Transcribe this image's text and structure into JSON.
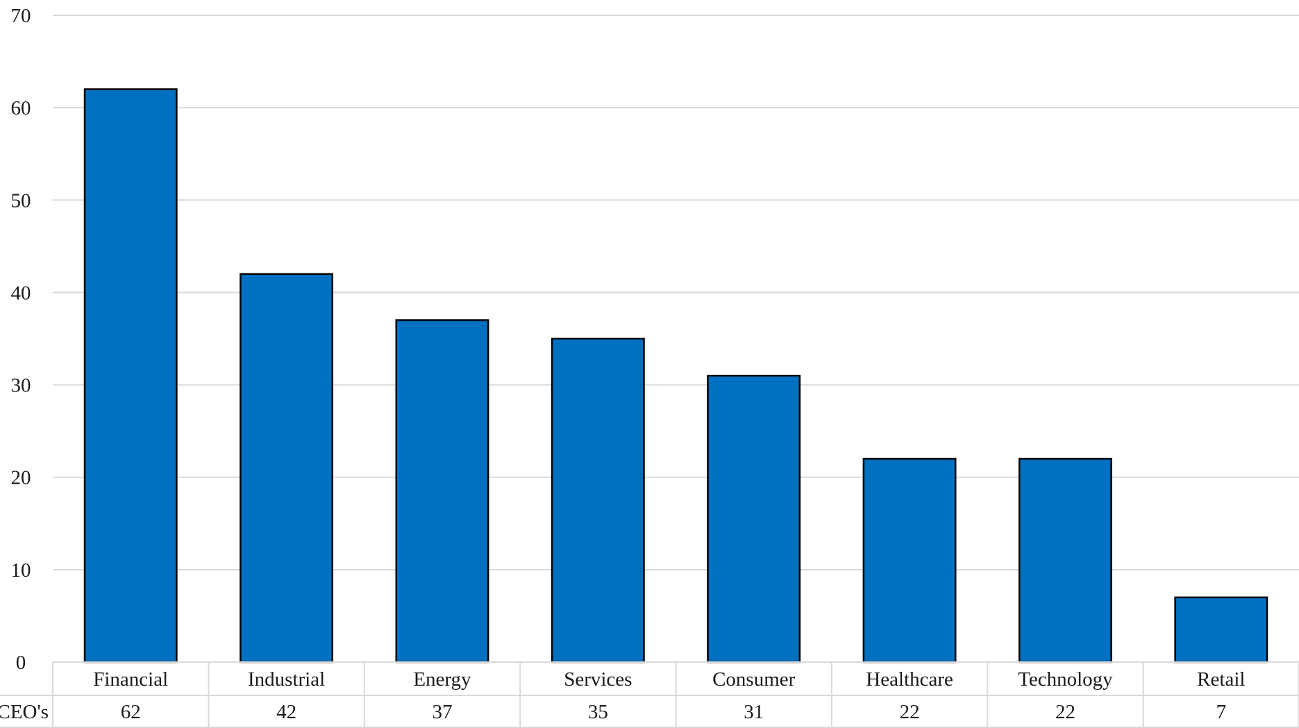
{
  "chart_data": {
    "type": "bar",
    "categories": [
      "Financial",
      "Industrial",
      "Energy",
      "Services",
      "Consumer",
      "Healthcare",
      "Technology",
      "Retail"
    ],
    "series": [
      {
        "name": "CEO's",
        "values": [
          62,
          42,
          37,
          35,
          31,
          22,
          22,
          7
        ]
      }
    ],
    "ylim": [
      0,
      70
    ],
    "yticks": [
      0,
      10,
      20,
      30,
      40,
      50,
      60,
      70
    ],
    "grid": true,
    "data_table": true,
    "title": "",
    "xlabel": "",
    "ylabel": ""
  },
  "colors": {
    "bar_fill": "#0070C0",
    "bar_border": "#000000",
    "gridline": "#d9d9d9"
  }
}
